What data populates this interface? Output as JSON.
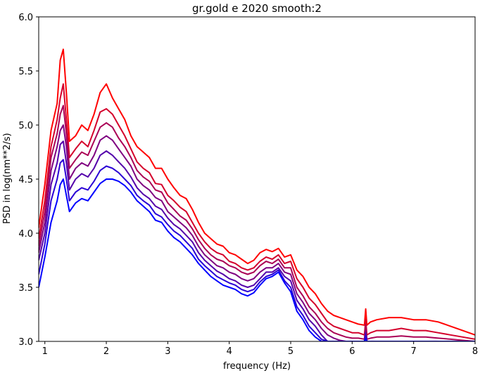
{
  "chart_data": {
    "type": "line",
    "title": "gr.gold e 2020 smooth:2",
    "xlabel": "frequency (Hz)",
    "ylabel": "PSD in log(nm**2/s)",
    "xlim": [
      0.9,
      8.0
    ],
    "ylim": [
      3.0,
      6.0
    ],
    "xticks": [
      "1",
      "2",
      "3",
      "4",
      "5",
      "6",
      "7",
      "8"
    ],
    "yticks": [
      "3.0",
      "3.5",
      "4.0",
      "4.5",
      "5.0",
      "5.5",
      "6.0"
    ],
    "grid": false,
    "legend": "none",
    "x": [
      0.9,
      1.0,
      1.1,
      1.2,
      1.25,
      1.3,
      1.35,
      1.4,
      1.5,
      1.6,
      1.7,
      1.8,
      1.9,
      2.0,
      2.1,
      2.2,
      2.3,
      2.4,
      2.5,
      2.6,
      2.7,
      2.8,
      2.9,
      3.0,
      3.1,
      3.2,
      3.3,
      3.4,
      3.5,
      3.6,
      3.7,
      3.8,
      3.9,
      4.0,
      4.1,
      4.2,
      4.3,
      4.4,
      4.5,
      4.6,
      4.7,
      4.8,
      4.9,
      5.0,
      5.1,
      5.2,
      5.3,
      5.4,
      5.5,
      5.6,
      5.7,
      5.8,
      5.9,
      6.0,
      6.1,
      6.2,
      6.22,
      6.24,
      6.3,
      6.4,
      6.6,
      6.8,
      7.0,
      7.2,
      7.4,
      7.6,
      7.8,
      8.0
    ],
    "series": [
      {
        "color": "#ff0000",
        "values": [
          4.05,
          4.45,
          4.95,
          5.2,
          5.6,
          5.7,
          5.3,
          4.85,
          4.9,
          5.0,
          4.95,
          5.1,
          5.3,
          5.38,
          5.25,
          5.15,
          5.05,
          4.9,
          4.8,
          4.75,
          4.7,
          4.6,
          4.6,
          4.5,
          4.42,
          4.35,
          4.32,
          4.22,
          4.1,
          4.0,
          3.95,
          3.9,
          3.88,
          3.82,
          3.8,
          3.76,
          3.72,
          3.75,
          3.82,
          3.85,
          3.83,
          3.86,
          3.78,
          3.8,
          3.66,
          3.6,
          3.5,
          3.44,
          3.35,
          3.28,
          3.24,
          3.22,
          3.2,
          3.18,
          3.16,
          3.15,
          3.3,
          3.15,
          3.18,
          3.2,
          3.22,
          3.22,
          3.2,
          3.2,
          3.18,
          3.14,
          3.1,
          3.06
        ]
      },
      {
        "color": "#d4002b",
        "values": [
          3.95,
          4.3,
          4.8,
          5.05,
          5.25,
          5.38,
          5.05,
          4.7,
          4.78,
          4.85,
          4.8,
          4.95,
          5.12,
          5.15,
          5.1,
          5.0,
          4.9,
          4.78,
          4.66,
          4.6,
          4.56,
          4.46,
          4.45,
          4.35,
          4.3,
          4.24,
          4.2,
          4.1,
          4.0,
          3.92,
          3.86,
          3.82,
          3.8,
          3.74,
          3.72,
          3.68,
          3.66,
          3.68,
          3.74,
          3.78,
          3.76,
          3.8,
          3.72,
          3.74,
          3.58,
          3.5,
          3.4,
          3.34,
          3.26,
          3.18,
          3.14,
          3.12,
          3.1,
          3.08,
          3.08,
          3.06,
          3.2,
          3.06,
          3.08,
          3.1,
          3.1,
          3.12,
          3.1,
          3.1,
          3.08,
          3.06,
          3.04,
          3.02
        ]
      },
      {
        "color": "#aa0055",
        "values": [
          3.88,
          4.2,
          4.7,
          4.92,
          5.1,
          5.18,
          4.92,
          4.6,
          4.68,
          4.75,
          4.72,
          4.85,
          4.98,
          5.02,
          4.98,
          4.88,
          4.8,
          4.7,
          4.58,
          4.52,
          4.48,
          4.4,
          4.38,
          4.28,
          4.22,
          4.16,
          4.12,
          4.04,
          3.94,
          3.86,
          3.8,
          3.76,
          3.74,
          3.7,
          3.68,
          3.64,
          3.62,
          3.64,
          3.7,
          3.74,
          3.72,
          3.76,
          3.68,
          3.68,
          3.5,
          3.42,
          3.32,
          3.26,
          3.18,
          3.12,
          3.08,
          3.06,
          3.04,
          3.03,
          3.03,
          3.02,
          3.15,
          3.02,
          3.03,
          3.04,
          3.04,
          3.05,
          3.04,
          3.04,
          3.03,
          3.02,
          3.01,
          3.0
        ]
      },
      {
        "color": "#7f0080",
        "values": [
          3.82,
          4.1,
          4.58,
          4.8,
          4.95,
          5.0,
          4.8,
          4.5,
          4.6,
          4.65,
          4.62,
          4.72,
          4.86,
          4.9,
          4.86,
          4.78,
          4.7,
          4.62,
          4.5,
          4.44,
          4.4,
          4.33,
          4.3,
          4.2,
          4.15,
          4.1,
          4.05,
          3.98,
          3.88,
          3.8,
          3.75,
          3.7,
          3.68,
          3.64,
          3.62,
          3.58,
          3.56,
          3.58,
          3.64,
          3.68,
          3.68,
          3.72,
          3.64,
          3.62,
          3.44,
          3.36,
          3.26,
          3.2,
          3.12,
          3.06,
          3.03,
          3.01,
          3.0,
          3.0,
          3.0,
          3.0,
          3.1,
          3.0,
          3.0,
          3.0,
          3.0,
          3.0,
          3.0,
          3.0,
          3.0,
          3.0,
          3.0,
          3.0
        ]
      },
      {
        "color": "#5400aa",
        "values": [
          3.75,
          4.0,
          4.45,
          4.65,
          4.82,
          4.85,
          4.65,
          4.4,
          4.5,
          4.55,
          4.52,
          4.6,
          4.72,
          4.76,
          4.72,
          4.66,
          4.6,
          4.52,
          4.42,
          4.36,
          4.32,
          4.25,
          4.22,
          4.14,
          4.08,
          4.04,
          3.98,
          3.92,
          3.82,
          3.75,
          3.7,
          3.65,
          3.62,
          3.58,
          3.56,
          3.52,
          3.5,
          3.52,
          3.58,
          3.64,
          3.64,
          3.68,
          3.6,
          3.56,
          3.38,
          3.3,
          3.2,
          3.14,
          3.06,
          3.0,
          3.0,
          3.0,
          3.0,
          3.0,
          3.0,
          3.0,
          3.08,
          3.0,
          3.0,
          3.0,
          3.0,
          3.0,
          3.0,
          3.0,
          3.0,
          3.0,
          3.0,
          3.0
        ]
      },
      {
        "color": "#2a00d5",
        "values": [
          3.62,
          3.9,
          4.3,
          4.5,
          4.65,
          4.68,
          4.5,
          4.3,
          4.38,
          4.42,
          4.4,
          4.48,
          4.58,
          4.62,
          4.6,
          4.56,
          4.5,
          4.44,
          4.35,
          4.3,
          4.26,
          4.18,
          4.15,
          4.08,
          4.02,
          3.98,
          3.92,
          3.86,
          3.76,
          3.7,
          3.65,
          3.6,
          3.57,
          3.54,
          3.52,
          3.48,
          3.46,
          3.48,
          3.55,
          3.6,
          3.62,
          3.66,
          3.56,
          3.5,
          3.32,
          3.24,
          3.14,
          3.08,
          3.02,
          3.0,
          3.0,
          3.0,
          3.0,
          3.0,
          3.0,
          3.0,
          3.05,
          3.0,
          3.0,
          3.0,
          3.0,
          3.0,
          3.0,
          3.0,
          3.0,
          3.0,
          3.0,
          3.0
        ]
      },
      {
        "color": "#0000ff",
        "values": [
          3.5,
          3.78,
          4.1,
          4.3,
          4.45,
          4.5,
          4.35,
          4.2,
          4.28,
          4.32,
          4.3,
          4.38,
          4.46,
          4.5,
          4.5,
          4.48,
          4.44,
          4.38,
          4.3,
          4.25,
          4.2,
          4.12,
          4.1,
          4.02,
          3.96,
          3.92,
          3.86,
          3.8,
          3.72,
          3.66,
          3.6,
          3.56,
          3.52,
          3.5,
          3.48,
          3.44,
          3.42,
          3.45,
          3.52,
          3.58,
          3.6,
          3.64,
          3.54,
          3.46,
          3.28,
          3.2,
          3.1,
          3.04,
          3.0,
          3.0,
          3.0,
          3.0,
          3.0,
          3.0,
          3.0,
          3.0,
          3.02,
          3.0,
          3.0,
          3.0,
          3.0,
          3.0,
          3.0,
          3.0,
          3.0,
          3.0,
          3.0,
          3.0
        ]
      }
    ]
  }
}
